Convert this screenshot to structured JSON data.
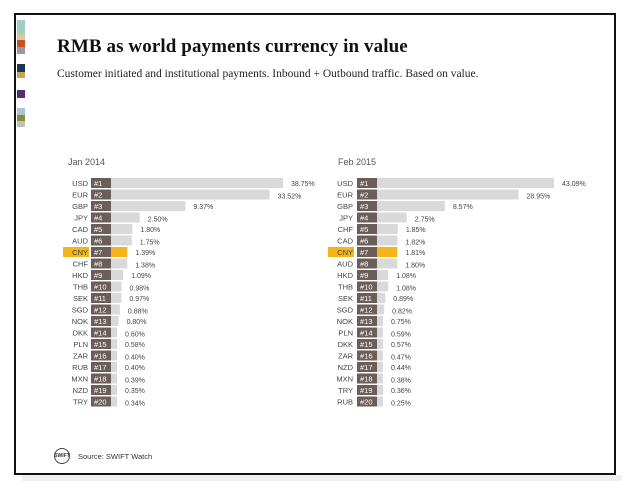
{
  "title": "RMB as world payments currency in value",
  "subtitle": "Customer initiated and institutional payments. Inbound + Outbound traffic. Based on value.",
  "source_label": "Source: SWIFT Watch",
  "logo_text": "SWIFT",
  "colors": {
    "bar": "#d9d9d9",
    "highlight": "#f4b51a",
    "rank_box": "#6b5e58",
    "text": "#444444",
    "swatches": [
      "#9fcfc4",
      "#d7c9a8",
      "#c8512c",
      "#9a9a9a",
      "#ffffff",
      "#1c3550",
      "#c4a857",
      "#ffffff",
      "#5a2b6e",
      "#ffffff",
      "#a9c6d1",
      "#8a8a3a",
      "#c0c0c0"
    ]
  },
  "chart_data": [
    {
      "type": "bar",
      "orientation": "horizontal",
      "title": "Jan 2014",
      "highlight": "CNY",
      "categories": [
        "USD",
        "EUR",
        "GBP",
        "JPY",
        "CAD",
        "AUD",
        "CNY",
        "CHF",
        "HKD",
        "THB",
        "SEK",
        "SGD",
        "NOK",
        "DKK",
        "PLN",
        "ZAR",
        "RUB",
        "MXN",
        "NZD",
        "TRY"
      ],
      "ranks": [
        "#1",
        "#2",
        "#3",
        "#4",
        "#5",
        "#6",
        "#7",
        "#8",
        "#9",
        "#10",
        "#11",
        "#12",
        "#13",
        "#14",
        "#15",
        "#16",
        "#17",
        "#18",
        "#19",
        "#20"
      ],
      "values": [
        38.75,
        33.52,
        9.37,
        2.5,
        1.8,
        1.75,
        1.39,
        1.38,
        1.09,
        0.98,
        0.97,
        0.88,
        0.8,
        0.6,
        0.58,
        0.4,
        0.4,
        0.39,
        0.35,
        0.34
      ],
      "labels": [
        "38.75%",
        "33.52%",
        "9.37%",
        "2.50%",
        "1.80%",
        "1.75%",
        "1.39%",
        "1.38%",
        "1.09%",
        "0.98%",
        "0.97%",
        "0.88%",
        "0.80%",
        "0.60%",
        "0.58%",
        "0.40%",
        "0.40%",
        "0.39%",
        "0.35%",
        "0.34%"
      ]
    },
    {
      "type": "bar",
      "orientation": "horizontal",
      "title": "Feb 2015",
      "highlight": "CNY",
      "categories": [
        "USD",
        "EUR",
        "GBP",
        "JPY",
        "CHF",
        "CAD",
        "CNY",
        "AUD",
        "HKD",
        "THB",
        "SEK",
        "SGD",
        "NOK",
        "PLN",
        "DKK",
        "ZAR",
        "NZD",
        "MXN",
        "TRY",
        "RUB"
      ],
      "ranks": [
        "#1",
        "#2",
        "#3",
        "#4",
        "#5",
        "#6",
        "#7",
        "#8",
        "#9",
        "#10",
        "#11",
        "#12",
        "#13",
        "#14",
        "#15",
        "#16",
        "#17",
        "#18",
        "#19",
        "#20"
      ],
      "values": [
        43.09,
        28.95,
        8.57,
        2.75,
        1.85,
        1.82,
        1.81,
        1.8,
        1.08,
        1.08,
        0.89,
        0.82,
        0.75,
        0.59,
        0.57,
        0.47,
        0.44,
        0.38,
        0.36,
        0.25
      ],
      "labels": [
        "43.09%",
        "28.95%",
        "8.57%",
        "2.75%",
        "1.85%",
        "1.82%",
        "1.81%",
        "1.80%",
        "1.08%",
        "1.08%",
        "0.89%",
        "0.82%",
        "0.75%",
        "0.59%",
        "0.57%",
        "0.47%",
        "0.44%",
        "0.38%",
        "0.36%",
        "0.25%"
      ]
    }
  ]
}
